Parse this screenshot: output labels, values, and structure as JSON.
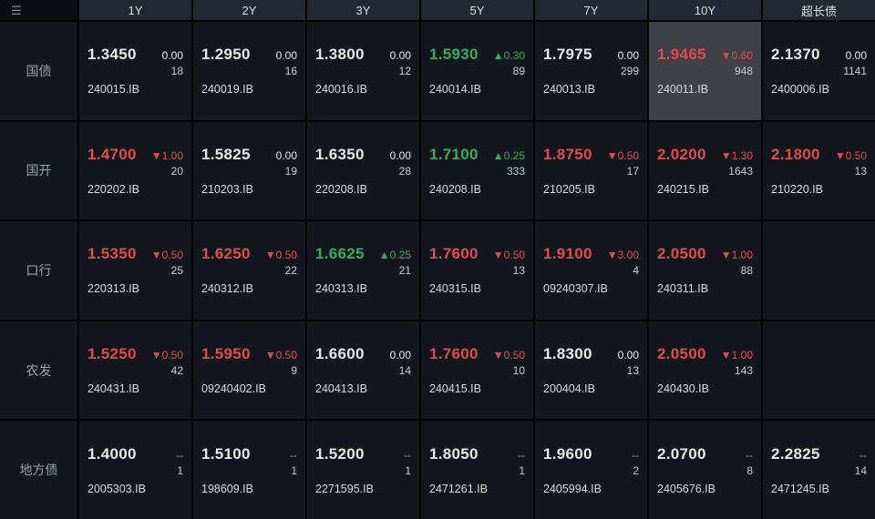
{
  "menu_icon": "☰",
  "header": {
    "columns": [
      "1Y",
      "2Y",
      "3Y",
      "5Y",
      "7Y",
      "10Y",
      "超长债"
    ]
  },
  "rows": [
    {
      "label": "国债",
      "cells": [
        {
          "rate": "1.3450",
          "change": "0.00",
          "volume": "18",
          "code": "240015.IB",
          "trend": "flat"
        },
        {
          "rate": "1.2950",
          "change": "0.00",
          "volume": "16",
          "code": "240019.IB",
          "trend": "flat"
        },
        {
          "rate": "1.3800",
          "change": "0.00",
          "volume": "12",
          "code": "240016.IB",
          "trend": "flat"
        },
        {
          "rate": "1.5930",
          "change": "▲0.30",
          "volume": "89",
          "code": "240014.IB",
          "trend": "up"
        },
        {
          "rate": "1.7975",
          "change": "0.00",
          "volume": "299",
          "code": "240013.IB",
          "trend": "flat"
        },
        {
          "rate": "1.9465",
          "change": "▼0.60",
          "volume": "948",
          "code": "240011.IB",
          "trend": "down",
          "selected": true
        },
        {
          "rate": "2.1370",
          "change": "0.00",
          "volume": "1141",
          "code": "2400006.IB",
          "trend": "flat"
        }
      ]
    },
    {
      "label": "国开",
      "cells": [
        {
          "rate": "1.4700",
          "change": "▼1.00",
          "volume": "20",
          "code": "220202.IB",
          "trend": "down"
        },
        {
          "rate": "1.5825",
          "change": "0.00",
          "volume": "19",
          "code": "210203.IB",
          "trend": "flat"
        },
        {
          "rate": "1.6350",
          "change": "0.00",
          "volume": "28",
          "code": "220208.IB",
          "trend": "flat"
        },
        {
          "rate": "1.7100",
          "change": "▲0.25",
          "volume": "333",
          "code": "240208.IB",
          "trend": "up"
        },
        {
          "rate": "1.8750",
          "change": "▼0.50",
          "volume": "17",
          "code": "210205.IB",
          "trend": "down"
        },
        {
          "rate": "2.0200",
          "change": "▼1.30",
          "volume": "1643",
          "code": "240215.IB",
          "trend": "down"
        },
        {
          "rate": "2.1800",
          "change": "▼0.50",
          "volume": "13",
          "code": "210220.IB",
          "trend": "down"
        }
      ]
    },
    {
      "label": "口行",
      "cells": [
        {
          "rate": "1.5350",
          "change": "▼0.50",
          "volume": "25",
          "code": "220313.IB",
          "trend": "down"
        },
        {
          "rate": "1.6250",
          "change": "▼0.50",
          "volume": "22",
          "code": "240312.IB",
          "trend": "down"
        },
        {
          "rate": "1.6625",
          "change": "▲0.25",
          "volume": "21",
          "code": "240313.IB",
          "trend": "up"
        },
        {
          "rate": "1.7600",
          "change": "▼0.50",
          "volume": "13",
          "code": "240315.IB",
          "trend": "down"
        },
        {
          "rate": "1.9100",
          "change": "▼3.00",
          "volume": "4",
          "code": "09240307.IB",
          "trend": "down"
        },
        {
          "rate": "2.0500",
          "change": "▼1.00",
          "volume": "88",
          "code": "240311.IB",
          "trend": "down"
        },
        {
          "empty": true
        }
      ]
    },
    {
      "label": "农发",
      "cells": [
        {
          "rate": "1.5250",
          "change": "▼0.50",
          "volume": "42",
          "code": "240431.IB",
          "trend": "down"
        },
        {
          "rate": "1.5950",
          "change": "▼0.50",
          "volume": "9",
          "code": "09240402.IB",
          "trend": "down"
        },
        {
          "rate": "1.6600",
          "change": "0.00",
          "volume": "14",
          "code": "240413.IB",
          "trend": "flat"
        },
        {
          "rate": "1.7600",
          "change": "▼0.50",
          "volume": "10",
          "code": "240415.IB",
          "trend": "down"
        },
        {
          "rate": "1.8300",
          "change": "0.00",
          "volume": "13",
          "code": "200404.IB",
          "trend": "flat"
        },
        {
          "rate": "2.0500",
          "change": "▼1.00",
          "volume": "143",
          "code": "240430.IB",
          "trend": "down"
        },
        {
          "empty": true
        }
      ]
    },
    {
      "label": "地方债",
      "cells": [
        {
          "rate": "1.4000",
          "change": "--",
          "volume": "1",
          "code": "2005303.IB",
          "trend": "none"
        },
        {
          "rate": "1.5100",
          "change": "--",
          "volume": "1",
          "code": "198609.IB",
          "trend": "none"
        },
        {
          "rate": "1.5200",
          "change": "--",
          "volume": "1",
          "code": "2271595.IB",
          "trend": "none"
        },
        {
          "rate": "1.8050",
          "change": "--",
          "volume": "1",
          "code": "2471261.IB",
          "trend": "none"
        },
        {
          "rate": "1.9600",
          "change": "--",
          "volume": "2",
          "code": "2405994.IB",
          "trend": "none"
        },
        {
          "rate": "2.0700",
          "change": "--",
          "volume": "8",
          "code": "2405676.IB",
          "trend": "none"
        },
        {
          "rate": "2.2825",
          "change": "--",
          "volume": "14",
          "code": "2471245.IB",
          "trend": "none"
        }
      ]
    }
  ],
  "colors": {
    "up_green": "#2eb05e",
    "down_red": "#e14b4b",
    "flat_white": "#e8e8e8",
    "selected_cell_bg": "#3e4148",
    "cell_bg": "#14161d",
    "header_bg": "#242833"
  }
}
